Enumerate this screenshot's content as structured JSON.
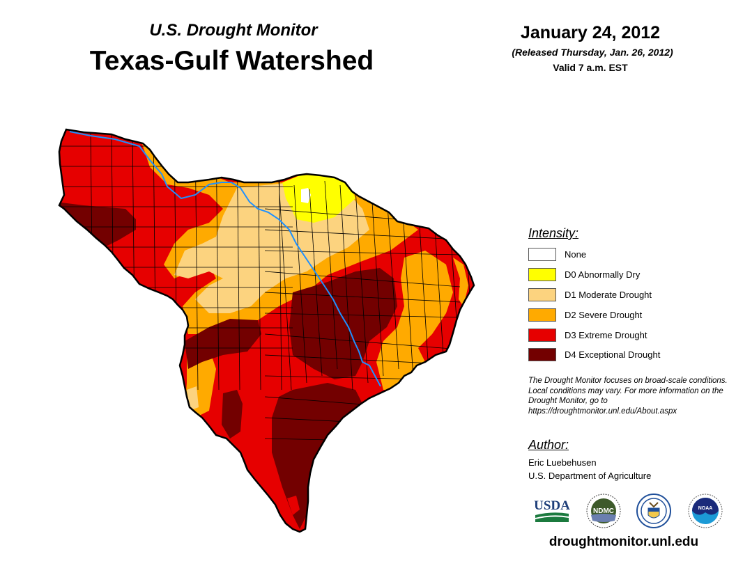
{
  "header": {
    "subtitle": "U.S. Drought Monitor",
    "title": "Texas-Gulf Watershed",
    "date": "January 24, 2012",
    "released": "(Released Thursday, Jan. 26, 2012)",
    "valid": "Valid 7 a.m. EST"
  },
  "legend": {
    "title": "Intensity:",
    "items": [
      {
        "label": "None",
        "color": "#ffffff"
      },
      {
        "label": "D0 Abnormally Dry",
        "color": "#ffff00"
      },
      {
        "label": "D1 Moderate Drought",
        "color": "#fcd37f"
      },
      {
        "label": "D2 Severe Drought",
        "color": "#ffaa00"
      },
      {
        "label": "D3 Extreme Drought",
        "color": "#e60000"
      },
      {
        "label": "D4 Exceptional Drought",
        "color": "#730000"
      }
    ]
  },
  "note": "The Drought Monitor focuses on broad-scale conditions. Local conditions may vary. For more information on the Drought Monitor, go to https://droughtmonitor.unl.edu/About.aspx",
  "author": {
    "title": "Author:",
    "name": "Eric Luebehusen",
    "org": "U.S. Department of Agriculture"
  },
  "logos": [
    {
      "name": "usda-logo",
      "text": "USDA"
    },
    {
      "name": "ndmc-logo",
      "text": "NDMC"
    },
    {
      "name": "doc-seal-logo",
      "text": ""
    },
    {
      "name": "noaa-logo",
      "text": "NOAA"
    }
  ],
  "footer": {
    "url": "droughtmonitor.unl.edu"
  },
  "colors": {
    "river": "#1e90ff",
    "boundary": "#000000"
  }
}
